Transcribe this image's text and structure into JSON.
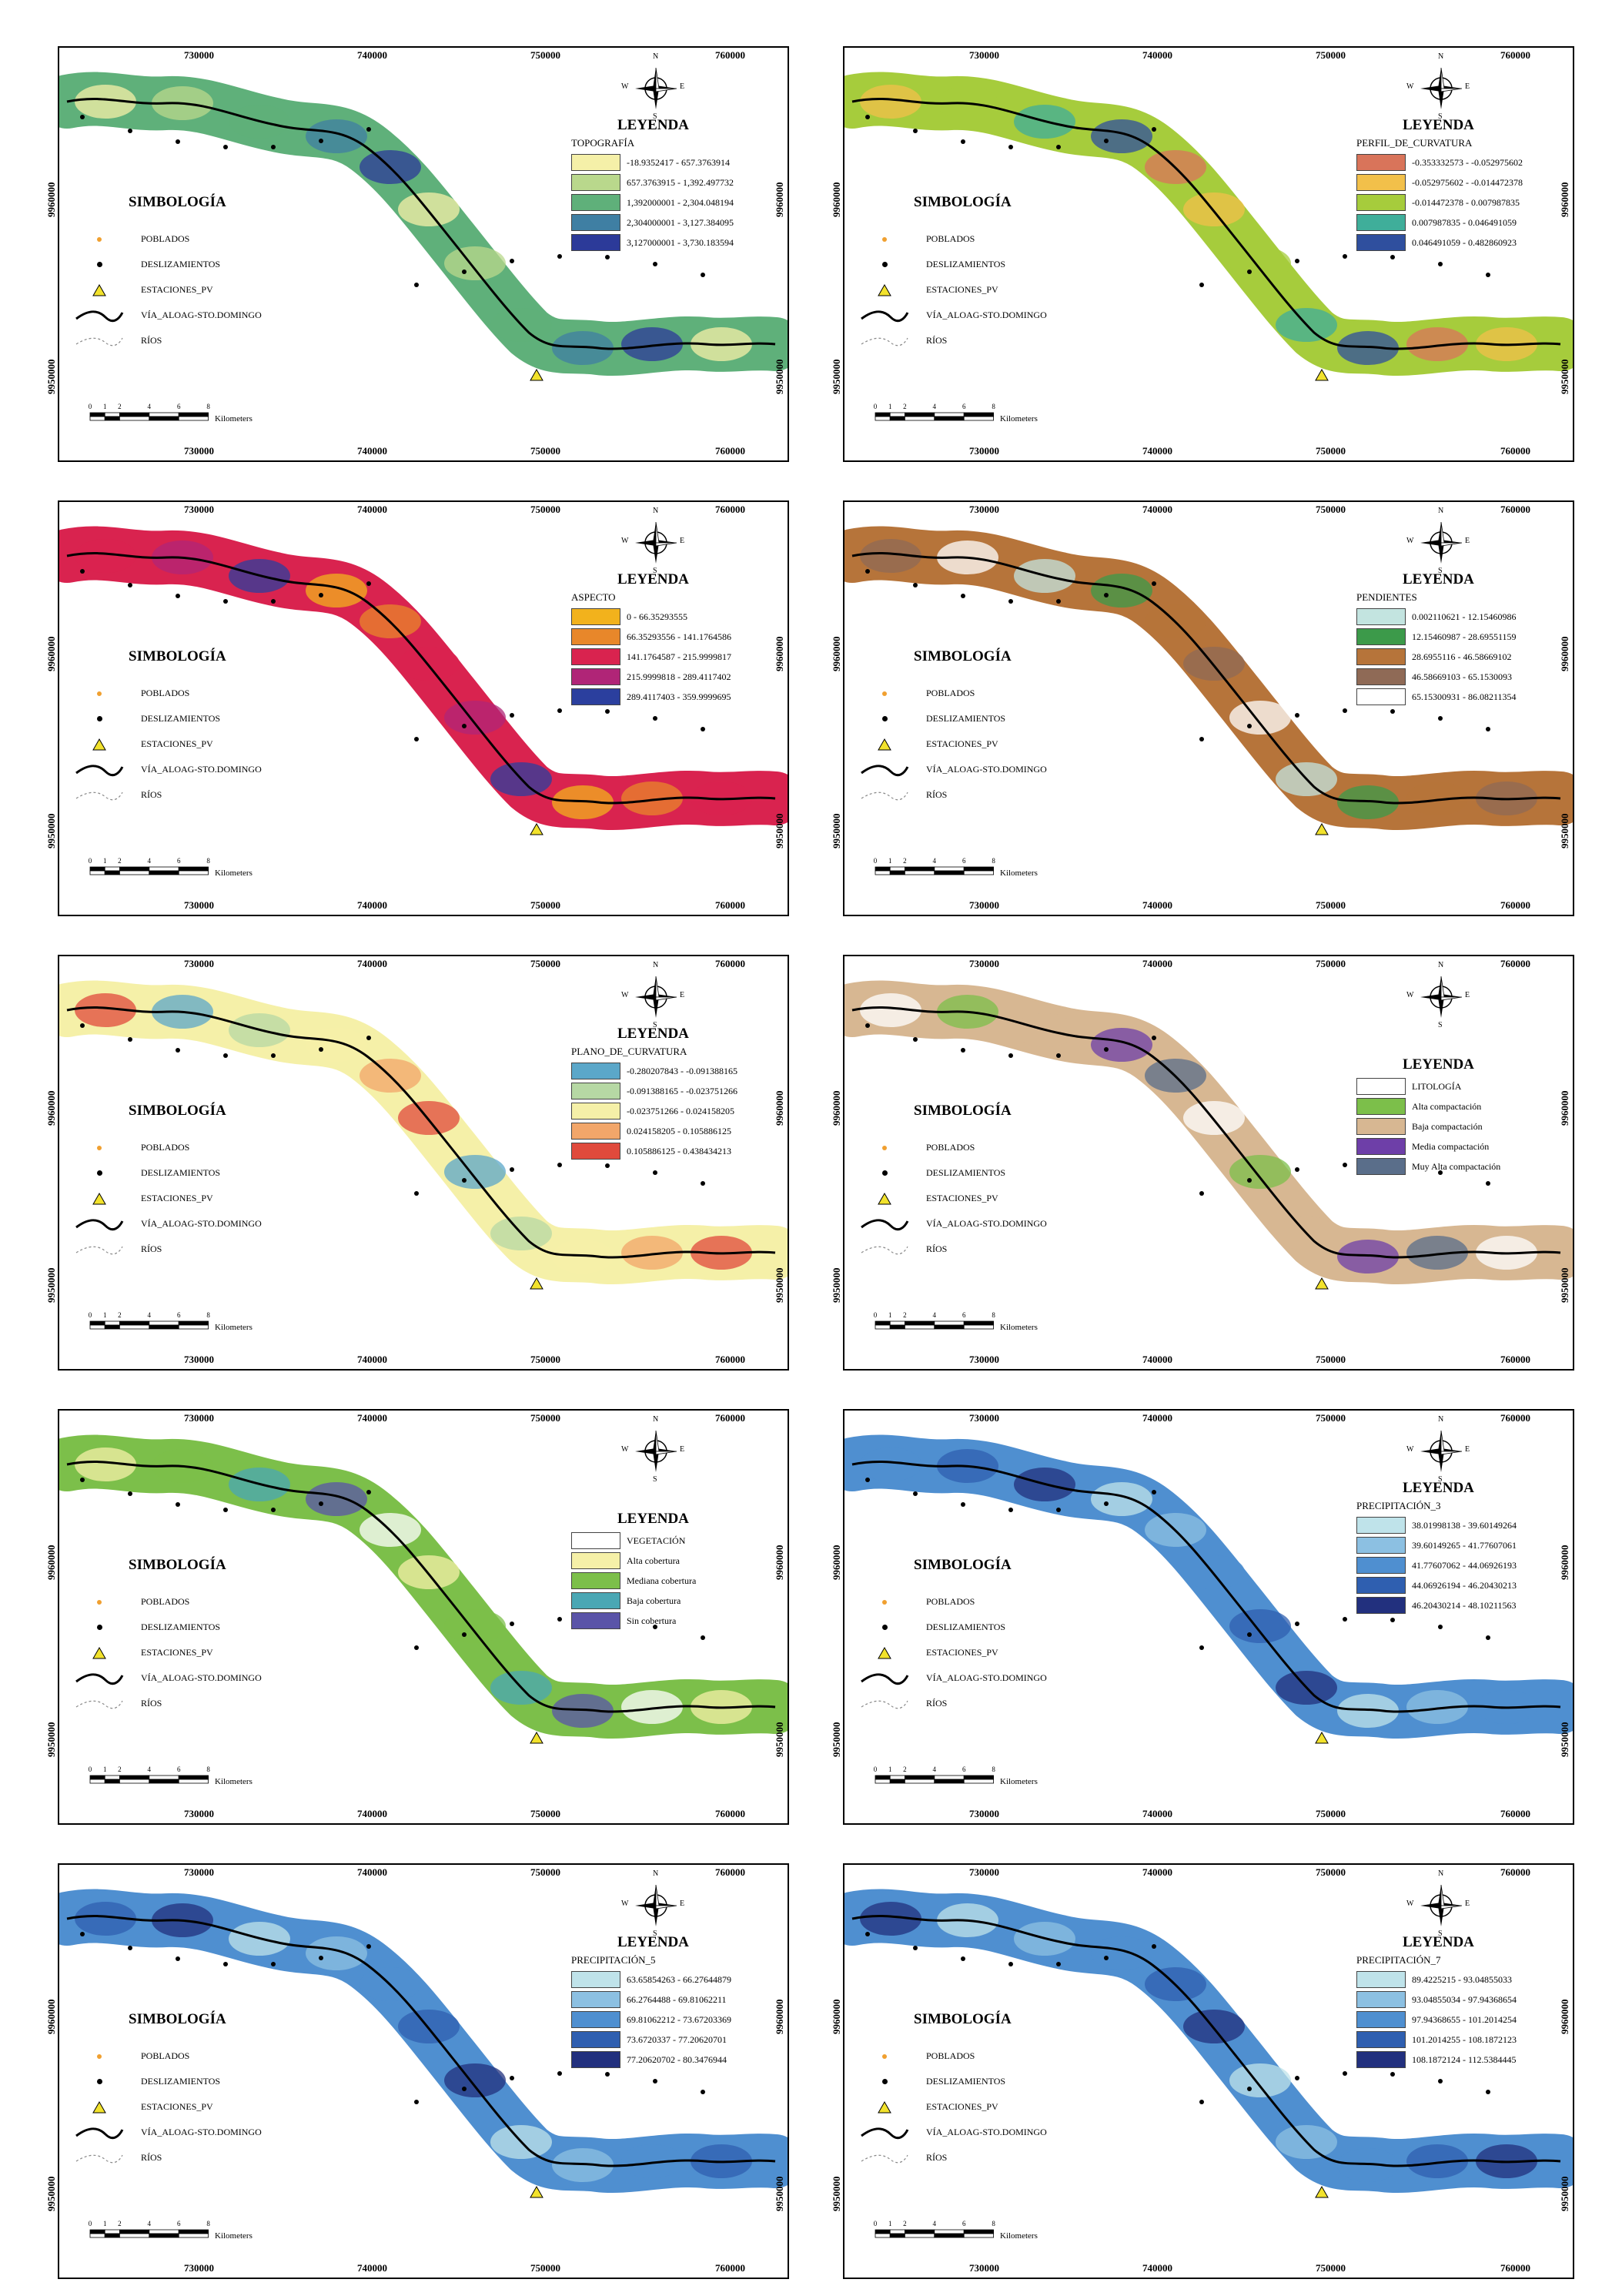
{
  "common": {
    "x_ticks": [
      "730000",
      "740000",
      "750000",
      "760000"
    ],
    "y_ticks": [
      "9960000",
      "9950000"
    ],
    "symbology_title": "SIMBOLOGÍA",
    "symbology": [
      {
        "icon": "dot-orange-icon",
        "label": "POBLADOS"
      },
      {
        "icon": "dot-black-icon",
        "label": "DESLIZAMIENTOS"
      },
      {
        "icon": "triangle-yellow-icon",
        "label": "ESTACIONES_PV"
      },
      {
        "icon": "line-black-icon",
        "label": "VÍA_ALOAG-STO.DOMINGO"
      },
      {
        "icon": "line-dashed-icon",
        "label": "RÍOS"
      }
    ],
    "legend_title": "LEYENDA",
    "scale_labels": [
      "0",
      "1",
      "2",
      "4",
      "6",
      "8"
    ],
    "scale_unit": "Kilometers",
    "compass": {
      "n": "N",
      "s": "S",
      "e": "E",
      "w": "W"
    }
  },
  "maps": [
    {
      "legend_subtitle": "TOPOGRAFÍA",
      "classes": [
        {
          "label": "-18.9352417 - 657.3763914",
          "color": "#f5f0a8"
        },
        {
          "label": "657.3763915 - 1,392.497732",
          "color": "#b9d88c"
        },
        {
          "label": "1,392000001 - 2,304.048194",
          "color": "#5fb07a"
        },
        {
          "label": "2,304000001 - 3,127.384095",
          "color": "#3f7fa3"
        },
        {
          "label": "3,127000001 - 3,730.183594",
          "color": "#2c3a99"
        }
      ]
    },
    {
      "legend_subtitle": "PERFIL_DE_CURVATURA",
      "classes": [
        {
          "label": "-0.353332573 - -0.052975602",
          "color": "#d9745a"
        },
        {
          "label": "-0.052975602 - -0.014472378",
          "color": "#f2c04a"
        },
        {
          "label": "-0.014472378 - 0.007987835",
          "color": "#a6cc3c"
        },
        {
          "label": "0.007987835 - 0.046491059",
          "color": "#3fae9a"
        },
        {
          "label": "0.046491059 - 0.482860923",
          "color": "#2f4f9e"
        }
      ]
    },
    {
      "legend_subtitle": "ASPECTO",
      "classes": [
        {
          "label": "0 - 66.35293555",
          "color": "#f2b21c"
        },
        {
          "label": "66.35293556 - 141.1764586",
          "color": "#e8872a"
        },
        {
          "label": "141.1764587 - 215.9999817",
          "color": "#d9234f"
        },
        {
          "label": "215.9999818 - 289.4117402",
          "color": "#b02577"
        },
        {
          "label": "289.4117403 - 359.9999695",
          "color": "#2b3f9e"
        }
      ]
    },
    {
      "legend_subtitle": "PENDIENTES",
      "classes": [
        {
          "label": "0.002110621 - 12.15460986",
          "color": "#c3e4e0"
        },
        {
          "label": "12.15460987 - 28.69551159",
          "color": "#3c9a4a"
        },
        {
          "label": "28.6955116 - 46.58669102",
          "color": "#b6743a"
        },
        {
          "label": "46.58669103 - 65.1530093",
          "color": "#8f6a56"
        },
        {
          "label": "65.15300931 - 86.08211354",
          "color": "#ffffff"
        }
      ]
    },
    {
      "legend_subtitle": "PLANO_DE_CURVATURA",
      "classes": [
        {
          "label": "-0.280207843 - -0.091388165",
          "color": "#5ba7c9"
        },
        {
          "label": "-0.091388165 - -0.023751266",
          "color": "#b6d8a4"
        },
        {
          "label": "-0.023751266 - 0.024158205",
          "color": "#f5f0a8"
        },
        {
          "label": "0.024158205 - 0.105886125",
          "color": "#f2a66a"
        },
        {
          "label": "0.105886125 - 0.438434213",
          "color": "#e04a3c"
        }
      ]
    },
    {
      "legend_subtitle": "",
      "classes": [
        {
          "label": "LITOLOGÍA",
          "color": "#ffffff"
        },
        {
          "label": "Alta compactación",
          "color": "#7cbf4a"
        },
        {
          "label": "Baja compactación",
          "color": "#d7b792"
        },
        {
          "label": "Media compactación",
          "color": "#6e3fa8"
        },
        {
          "label": "Muy Alta compactación",
          "color": "#5a6e8a"
        }
      ]
    },
    {
      "legend_subtitle": "",
      "classes": [
        {
          "label": "VEGETACIÓN",
          "color": "#ffffff"
        },
        {
          "label": "Alta cobertura",
          "color": "#f5f0a8"
        },
        {
          "label": "Mediana cobertura",
          "color": "#7cbf4a"
        },
        {
          "label": "Baja cobertura",
          "color": "#4aa7b4"
        },
        {
          "label": "Sin cobertura",
          "color": "#5a54a8"
        }
      ]
    },
    {
      "legend_subtitle": "PRECIPITACIÓN_3",
      "classes": [
        {
          "label": "38.01998138 - 39.60149264",
          "color": "#bfe3ea"
        },
        {
          "label": "39.60149265 - 41.77607061",
          "color": "#8cc0e2"
        },
        {
          "label": "41.77607062 - 44.06926193",
          "color": "#4f8fd0"
        },
        {
          "label": "44.06926194 - 46.20430213",
          "color": "#2f5fb0"
        },
        {
          "label": "46.20430214 - 48.10211563",
          "color": "#22307e"
        }
      ]
    },
    {
      "legend_subtitle": "PRECIPITACIÓN_5",
      "classes": [
        {
          "label": "63.65854263 - 66.27644879",
          "color": "#bfe3ea"
        },
        {
          "label": "66.2764488 - 69.81062211",
          "color": "#8cc0e2"
        },
        {
          "label": "69.81062212 - 73.67203369",
          "color": "#4f8fd0"
        },
        {
          "label": "73.6720337 - 77.20620701",
          "color": "#2f5fb0"
        },
        {
          "label": "77.20620702 - 80.3476944",
          "color": "#22307e"
        }
      ]
    },
    {
      "legend_subtitle": "PRECIPITACIÓN_7",
      "classes": [
        {
          "label": "89.4225215 - 93.04855033",
          "color": "#bfe3ea"
        },
        {
          "label": "93.04855034 - 97.94368654",
          "color": "#8cc0e2"
        },
        {
          "label": "97.94368655 - 101.2014254",
          "color": "#4f8fd0"
        },
        {
          "label": "101.2014255 - 108.1872123",
          "color": "#2f5fb0"
        },
        {
          "label": "108.1872124 - 112.5384445",
          "color": "#22307e"
        }
      ]
    }
  ]
}
